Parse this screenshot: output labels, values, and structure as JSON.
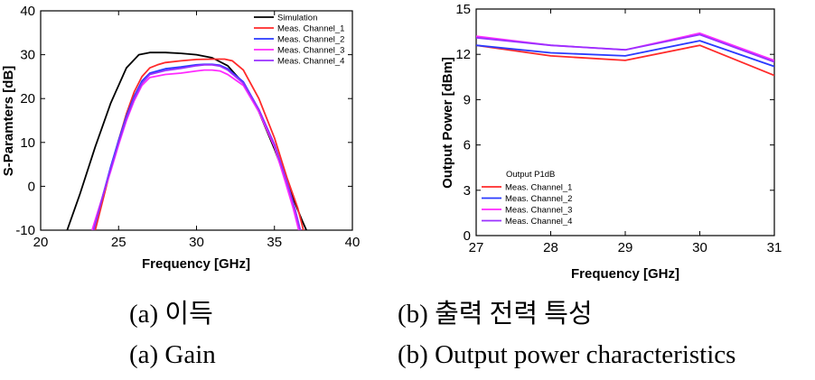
{
  "chart_data": [
    {
      "type": "line",
      "xlabel": "Frequency [GHz]",
      "ylabel": "S-Paramters [dB]",
      "xlim": [
        20,
        40
      ],
      "ylim": [
        -10,
        40
      ],
      "xticks": [
        20,
        25,
        30,
        35,
        40
      ],
      "yticks": [
        -10,
        0,
        10,
        20,
        30,
        40
      ],
      "grid": false,
      "legend_position": "top-right",
      "series": [
        {
          "name": "Simulation",
          "color": "#000000",
          "x": [
            21.5,
            22.5,
            23.5,
            24.5,
            25.5,
            26.3,
            27.0,
            28.0,
            29.0,
            30.0,
            31.0,
            32.0,
            33.0,
            34.0,
            35.0,
            36.0,
            36.8,
            37.3
          ],
          "y": [
            -12,
            -2,
            9,
            19,
            27,
            30,
            30.5,
            30.5,
            30.3,
            30.0,
            29.3,
            27.5,
            23.5,
            17,
            8.5,
            -1,
            -8,
            -12
          ]
        },
        {
          "name": "Meas. Channel_1",
          "color": "#ff2a2a",
          "x": [
            23.5,
            24.0,
            24.5,
            25.0,
            25.5,
            26.0,
            26.5,
            27.0,
            27.5,
            28.0,
            29.0,
            30.0,
            31.0,
            31.8,
            32.3,
            33.0,
            34.0,
            35.0,
            35.8,
            36.5,
            37.0
          ],
          "y": [
            -10,
            -3,
            4,
            10.5,
            16.5,
            21.5,
            25,
            27,
            27.7,
            28.2,
            28.6,
            28.9,
            29.0,
            29.0,
            28.6,
            26.5,
            20,
            11,
            2,
            -5,
            -12
          ]
        },
        {
          "name": "Meas. Channel_2",
          "color": "#2a3aff",
          "x": [
            23.4,
            24.0,
            24.5,
            25.0,
            25.5,
            26.0,
            26.5,
            27.0,
            28.0,
            29.0,
            30.0,
            30.5,
            31.0,
            31.5,
            32.0,
            33.0,
            34.0,
            35.0,
            35.8,
            36.3,
            36.8
          ],
          "y": [
            -10,
            -2,
            4.5,
            10.5,
            16,
            20.5,
            24,
            25.8,
            26.8,
            27.2,
            27.7,
            27.8,
            27.8,
            27.6,
            26.8,
            23.8,
            17.5,
            9.5,
            1,
            -5,
            -12
          ]
        },
        {
          "name": "Meas. Channel_3",
          "color": "#ff2aff",
          "x": [
            23.3,
            24.0,
            24.5,
            25.0,
            25.5,
            26.0,
            26.5,
            27.0,
            28.0,
            29.0,
            30.0,
            30.5,
            31.0,
            31.5,
            32.0,
            33.0,
            34.0,
            35.0,
            35.7,
            36.2,
            36.7
          ],
          "y": [
            -10,
            -2,
            3.5,
            9.5,
            15,
            19.5,
            23,
            24.8,
            25.5,
            25.8,
            26.3,
            26.5,
            26.5,
            26.3,
            25.5,
            23,
            17,
            9,
            1,
            -5,
            -12
          ]
        },
        {
          "name": "Meas. Channel_4",
          "color": "#9a30ff",
          "x": [
            23.4,
            24.0,
            24.5,
            25.0,
            25.5,
            26.0,
            26.5,
            27.0,
            28.0,
            29.0,
            30.0,
            30.5,
            31.0,
            31.5,
            32.0,
            33.0,
            34.0,
            35.0,
            35.8,
            36.3,
            36.8
          ],
          "y": [
            -10,
            -2,
            4,
            10,
            15.5,
            20,
            23.5,
            25.5,
            26.4,
            26.9,
            27.5,
            27.7,
            27.7,
            27.4,
            26.5,
            23.5,
            17.5,
            9.5,
            1,
            -5,
            -12
          ]
        }
      ]
    },
    {
      "type": "line",
      "xlabel": "Frequency [GHz]",
      "ylabel": "Output Power [dBm]",
      "xlim": [
        27,
        31
      ],
      "ylim": [
        0,
        15
      ],
      "xticks": [
        27,
        28,
        29,
        30,
        31
      ],
      "yticks": [
        0,
        3,
        6,
        9,
        12,
        15
      ],
      "grid": false,
      "legend_position": "bottom-left",
      "legend_title": "Output P1dB",
      "categories": [
        27,
        28,
        29,
        30,
        31
      ],
      "series": [
        {
          "name": "Meas. Channel_1",
          "color": "#ff2a2a",
          "values": [
            12.6,
            11.9,
            11.6,
            12.6,
            10.6
          ]
        },
        {
          "name": "Meas. Channel_2",
          "color": "#2a3aff",
          "values": [
            12.6,
            12.1,
            11.9,
            12.9,
            11.2
          ]
        },
        {
          "name": "Meas. Channel_3",
          "color": "#ff2aff",
          "values": [
            13.2,
            12.6,
            12.3,
            13.4,
            11.6
          ]
        },
        {
          "name": "Meas. Channel_4",
          "color": "#9a30ff",
          "values": [
            13.1,
            12.6,
            12.3,
            13.3,
            11.5
          ]
        }
      ]
    }
  ],
  "captions": {
    "a_korean": "(a) 이득",
    "a_english": "(a) Gain",
    "b_korean": "(b) 출력 전력 특성",
    "b_english": "(b) Output power characteristics"
  }
}
